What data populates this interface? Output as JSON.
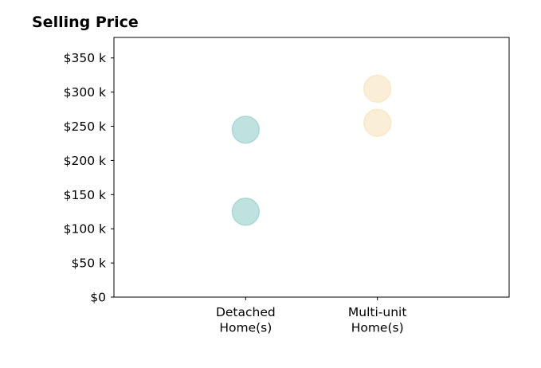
{
  "chart_data": {
    "type": "scatter",
    "title": "Selling Price",
    "xlabel": "",
    "ylabel": "",
    "categories": [
      [
        "Detached",
        "Home(s)"
      ],
      [
        "Multi-unit",
        "Home(s)"
      ]
    ],
    "series": [
      {
        "category_index": 0,
        "values": [
          245000,
          125000
        ],
        "color": "#7fc6bf"
      },
      {
        "category_index": 1,
        "values": [
          305000,
          255000
        ],
        "color": "#f5deae"
      }
    ],
    "ylim": [
      0,
      380000
    ],
    "yticks": [
      0,
      50000,
      100000,
      150000,
      200000,
      250000,
      300000,
      350000
    ],
    "ytick_labels": [
      "$0",
      "$50 k",
      "$100 k",
      "$150 k",
      "$200 k",
      "$250 k",
      "$300 k",
      "$350 k"
    ],
    "xlim": [
      -1,
      2
    ],
    "grid": false,
    "marker_opacity": 0.5
  }
}
